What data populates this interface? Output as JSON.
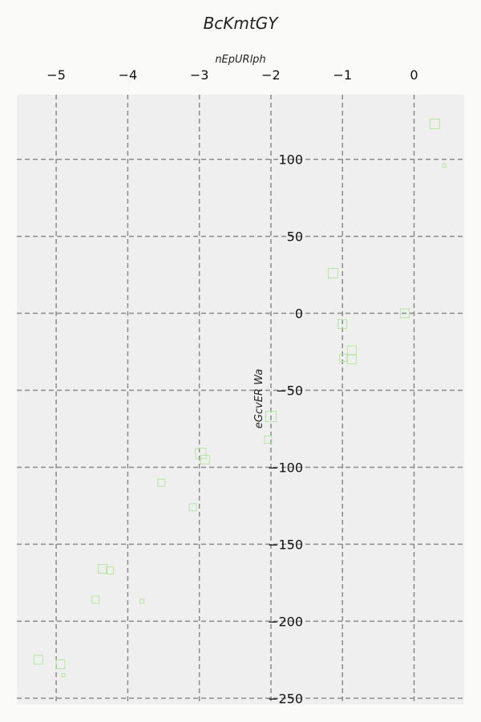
{
  "chart_data": {
    "type": "scatter",
    "title": "BcKmtGY",
    "xlabel": "nEpURlph",
    "ylabel": "eGcvER Wa",
    "xlim": [
      -5.55,
      0.7
    ],
    "ylim": [
      -254,
      142
    ],
    "xticks": [
      -5,
      -4,
      -3,
      -2,
      -1,
      0
    ],
    "yticks": [
      100,
      50,
      0,
      -50,
      -100,
      -150,
      -200,
      -250
    ],
    "xtick_labels": [
      "−5",
      "−4",
      "−3",
      "−2",
      "−1",
      "0"
    ],
    "ytick_labels": [
      "100",
      "50",
      "0",
      "−50",
      "−100",
      "−150",
      "−200",
      "−250"
    ],
    "grid": true,
    "marker": "square-open",
    "color": "#b5e6a0",
    "points": [
      {
        "x": 0.29,
        "y": 123,
        "s": 12
      },
      {
        "x": 0.42,
        "y": 96,
        "s": 4
      },
      {
        "x": -1.13,
        "y": 26,
        "s": 12
      },
      {
        "x": -0.13,
        "y": 0,
        "s": 11
      },
      {
        "x": -1.0,
        "y": -7,
        "s": 11
      },
      {
        "x": -0.87,
        "y": -24,
        "s": 11
      },
      {
        "x": -0.99,
        "y": -29,
        "s": 9
      },
      {
        "x": -0.87,
        "y": -30,
        "s": 11
      },
      {
        "x": -2.0,
        "y": -67,
        "s": 13
      },
      {
        "x": -2.04,
        "y": -82,
        "s": 9
      },
      {
        "x": -2.98,
        "y": -91,
        "s": 13
      },
      {
        "x": -2.92,
        "y": -95,
        "s": 11
      },
      {
        "x": -3.53,
        "y": -110,
        "s": 9
      },
      {
        "x": -3.09,
        "y": -126,
        "s": 9
      },
      {
        "x": -4.35,
        "y": -166,
        "s": 11
      },
      {
        "x": -4.25,
        "y": -167,
        "s": 9
      },
      {
        "x": -4.45,
        "y": -186,
        "s": 9
      },
      {
        "x": -3.8,
        "y": -187,
        "s": 5
      },
      {
        "x": -5.25,
        "y": -225,
        "s": 11
      },
      {
        "x": -4.94,
        "y": -228,
        "s": 11
      },
      {
        "x": -4.9,
        "y": -235,
        "s": 4
      }
    ]
  }
}
